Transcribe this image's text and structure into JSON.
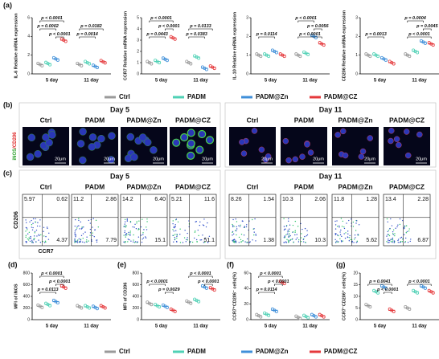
{
  "legend": {
    "items": [
      "Ctrl",
      "PADM",
      "PADM@Zn",
      "PADM@CZ"
    ],
    "colors": [
      "#9a9a9a",
      "#4fd1b5",
      "#3f8fd9",
      "#e5383b"
    ]
  },
  "panel_a": {
    "label": "(a)",
    "charts": [
      {
        "ylabel": "IL-6 Relative mRNA expression",
        "categories": [
          "5 day",
          "11 day"
        ],
        "values": [
          [
            1.0,
            1.1,
            1.6,
            3.6
          ],
          [
            1.0,
            1.2,
            0.8,
            1.3
          ]
        ],
        "ylim": [
          0,
          6
        ],
        "yticks": [
          0,
          2,
          4,
          6
        ],
        "annotations": [
          "p = 0.0002",
          "p < 0.0001",
          "p < 0.0001",
          "p = 0.0182",
          "p = 0.0014"
        ]
      },
      {
        "ylabel": "CCR7 Relative mRNA expression",
        "categories": [
          "5 day",
          "11 day"
        ],
        "values": [
          [
            1.0,
            1.1,
            1.3,
            3.2
          ],
          [
            1.0,
            1.5,
            0.5,
            0.6
          ]
        ],
        "ylim": [
          0,
          5
        ],
        "yticks": [
          0,
          1,
          2,
          3,
          4,
          5
        ],
        "annotations": [
          "p < 0.0001",
          "p = 0.0443",
          "p < 0.0001",
          "p = 0.0133",
          "p = 0.0383"
        ]
      },
      {
        "ylabel": "IL-10 Relative mRNA expression",
        "categories": [
          "5 day",
          "11 day"
        ],
        "values": [
          [
            1.0,
            1.0,
            1.2,
            1.0
          ],
          [
            1.0,
            1.1,
            2.0,
            1.6
          ]
        ],
        "ylim": [
          0,
          3
        ],
        "yticks": [
          0,
          1,
          2,
          3
        ],
        "annotations": [
          "p = 0.0114",
          "p < 0.0001",
          "p = 0.0056",
          "p < 0.0001"
        ]
      },
      {
        "ylabel": "CD206 Relative mRNA expression",
        "categories": [
          "5 day",
          "11 day"
        ],
        "values": [
          [
            1.0,
            1.0,
            0.8,
            0.6
          ],
          [
            1.0,
            1.2,
            1.7,
            1.6
          ]
        ],
        "ylim": [
          0,
          3
        ],
        "yticks": [
          0,
          1,
          2,
          3
        ],
        "annotations": [
          "p = 0.0013",
          "p = 0.0004",
          "p = 0.0045",
          "p < 0.0001"
        ]
      }
    ]
  },
  "panel_b": {
    "label": "(b)",
    "days": [
      "Day 5",
      "Day 11"
    ],
    "stain": [
      "iNOS",
      "/CD206"
    ],
    "scale_bar": "20μm"
  },
  "panel_c": {
    "label": "(c)",
    "days": [
      "Day 5",
      "Day 11"
    ],
    "y_axis": "CD206",
    "x_axis": "CCR7",
    "quadrants": [
      [
        [
          "5.97",
          "0.62",
          "4.37"
        ],
        [
          "11.2",
          "2.86",
          "7.79"
        ],
        [
          "14.2",
          "6.40",
          "15.1"
        ],
        [
          "5.21",
          "11.6",
          "51.1"
        ]
      ],
      [
        [
          "8.26",
          "1.54",
          "1.38"
        ],
        [
          "10.3",
          "2.06",
          "10.3"
        ],
        [
          "11.8",
          "1.28",
          "5.62"
        ],
        [
          "13.4",
          "2.28",
          "6.87"
        ]
      ]
    ]
  },
  "panel_bottom": {
    "charts": [
      {
        "label": "(d)",
        "ylabel": "MFI of iNOS",
        "categories": [
          "5 day",
          "11 day"
        ],
        "values": [
          [
            230,
            260,
            310,
            560
          ],
          [
            220,
            220,
            210,
            220
          ]
        ],
        "ylim": [
          0,
          800
        ],
        "yticks": [
          0,
          200,
          400,
          600,
          800
        ],
        "annotations": [
          "p < 0.0001",
          "p < 0.0001",
          "p = 0.0113"
        ]
      },
      {
        "label": "(e)",
        "ylabel": "MFI of CD206",
        "categories": [
          "5 day",
          "11 day"
        ],
        "values": [
          [
            280,
            240,
            230,
            160
          ],
          [
            300,
            330,
            560,
            530
          ]
        ],
        "ylim": [
          0,
          800
        ],
        "yticks": [
          0,
          200,
          400,
          600,
          800
        ],
        "annotations": [
          "p < 0.0001",
          "p = 0.0029",
          "p < 0.0001",
          "p < 0.0001"
        ]
      },
      {
        "label": "(f)",
        "ylabel": "CCR7⁺CD206⁻ cells(%)",
        "categories": [
          "5 day",
          "11 day"
        ],
        "values": [
          [
            5,
            7,
            12,
            48
          ],
          [
            3,
            4,
            5,
            5
          ]
        ],
        "ylim": [
          0,
          60
        ],
        "yticks": [
          0,
          20,
          40,
          60
        ],
        "annotations": [
          "p < 0.0001",
          "p < 0.0001",
          "p = 0.0114"
        ]
      },
      {
        "label": "(g)",
        "ylabel": "CCR7⁻CD206⁺ cells(%)",
        "categories": [
          "5 day",
          "11 day"
        ],
        "values": [
          [
            6,
            12,
            14,
            4
          ],
          [
            5,
            12,
            14,
            12
          ]
        ],
        "ylim": [
          0,
          20
        ],
        "yticks": [
          0,
          5,
          10,
          15,
          20
        ],
        "annotations": [
          "p = 0.0041",
          "p < 0.0001",
          "p < 0.0001"
        ]
      }
    ]
  }
}
